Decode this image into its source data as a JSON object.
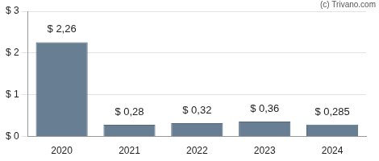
{
  "chart_data": {
    "type": "bar",
    "annotation": "(c) Trivano.com",
    "categories": [
      "2020",
      "2021",
      "2022",
      "2023",
      "2024"
    ],
    "values": [
      2.26,
      0.28,
      0.32,
      0.36,
      0.285
    ],
    "value_labels": [
      "$ 2,26",
      "$ 0,28",
      "$ 0,32",
      "$ 0,36",
      "$ 0,285"
    ],
    "data_labels": true,
    "color": "#687f93",
    "ylim": [
      0,
      3
    ],
    "yticks": [
      {
        "value": 0,
        "label": "$ 0"
      },
      {
        "value": 1,
        "label": "$ 1"
      },
      {
        "value": 2,
        "label": "$ 2"
      },
      {
        "value": 3,
        "label": "$ 3"
      }
    ],
    "grid": true
  }
}
